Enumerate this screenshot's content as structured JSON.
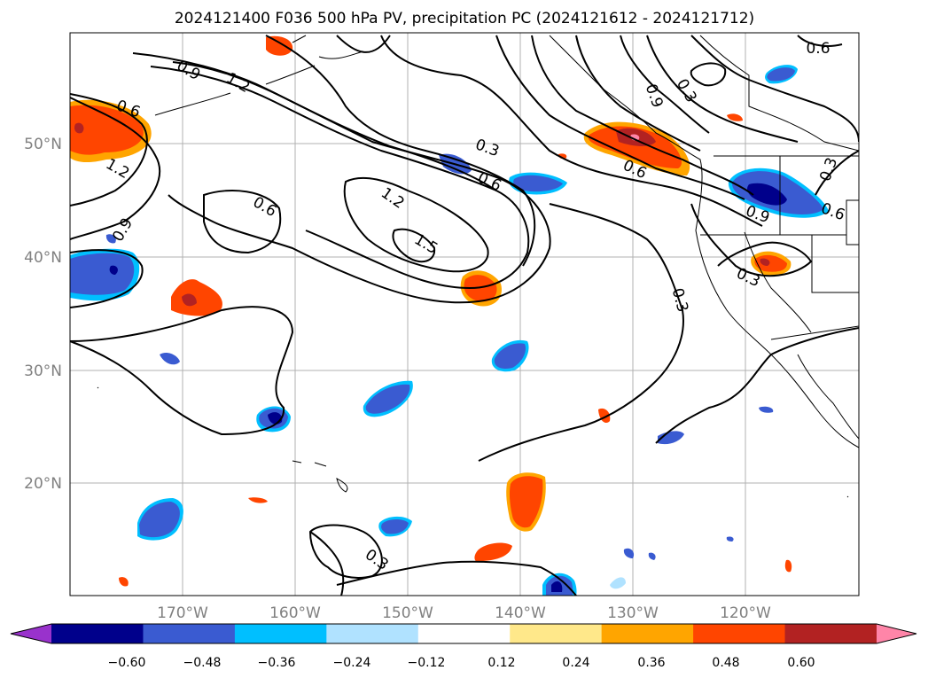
{
  "figure": {
    "title": "2024121400 F036 500 hPa PV, precipitation PC (2024121612 - 2024121712)"
  },
  "map": {
    "lat_labels": [
      "50°N",
      "40°N",
      "30°N",
      "20°N"
    ],
    "lon_labels": [
      "170°W",
      "160°W",
      "150°W",
      "140°W",
      "130°W",
      "120°W"
    ],
    "grid": true,
    "contour_labels": [
      "0.9",
      "1.2",
      "0.6",
      "1.2",
      "0.9",
      "0.3",
      "0.6",
      "0.6",
      "1.2",
      "1.5",
      "0.3",
      "0.6",
      "0.9",
      "0.6",
      "0.3",
      "0.3",
      "0.9",
      "0.6",
      "0.3",
      "0.3"
    ]
  },
  "colorbar": {
    "ticks": [
      "−0.60",
      "−0.48",
      "−0.36",
      "−0.24",
      "−0.12",
      "0.12",
      "0.24",
      "0.36",
      "0.48",
      "0.60"
    ],
    "colors": [
      "#9932cc",
      "#00008b",
      "#3a5bd1",
      "#00bfff",
      "#b0e2ff",
      "#ffffff",
      "#ffe88a",
      "#ffa500",
      "#ff4500",
      "#b22222",
      "#ff85a8"
    ],
    "extend": "both"
  },
  "colors": {
    "grid": "#b0b0b0",
    "contour": "#000000",
    "coast": "#000000"
  }
}
